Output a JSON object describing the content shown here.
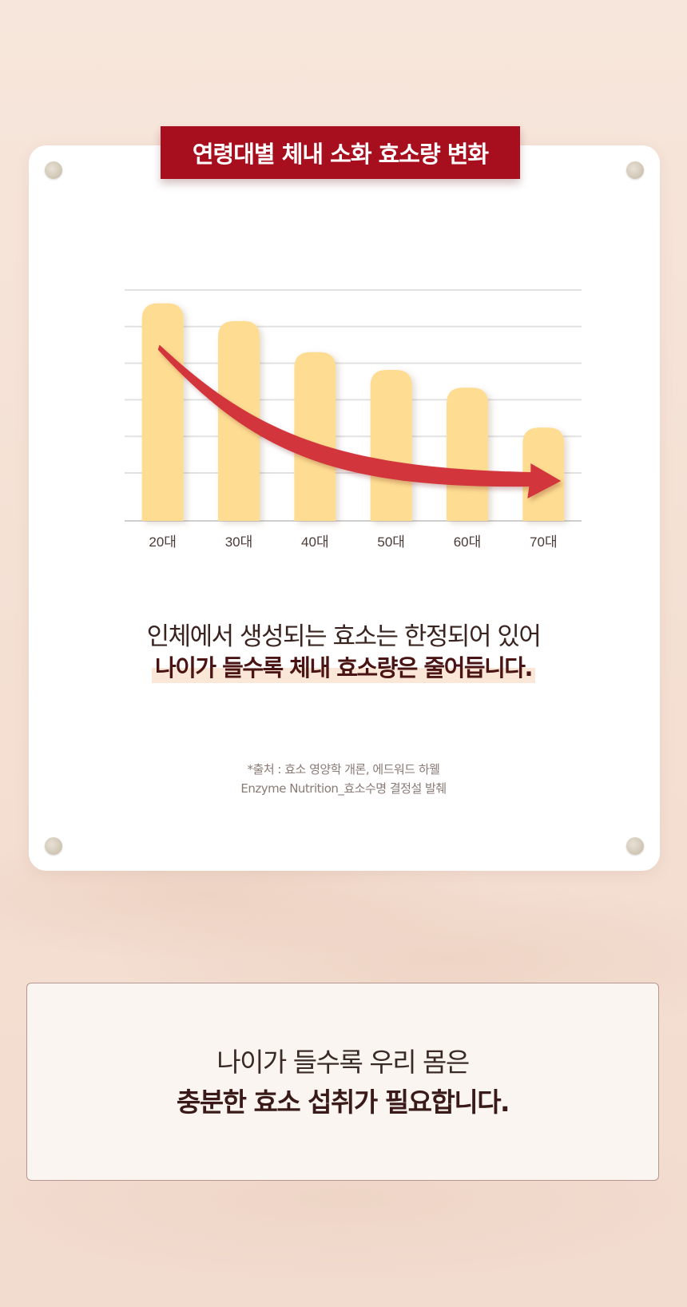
{
  "chart_data": {
    "type": "bar",
    "title": "연령대별 체내 소화 효소량 변화",
    "categories": [
      "20대",
      "30대",
      "40대",
      "50대",
      "60대",
      "70대"
    ],
    "values": [
      4.9,
      4.5,
      3.8,
      3.4,
      3.0,
      2.1
    ],
    "ylim": [
      0,
      5.2
    ],
    "grid": true,
    "bar_color": "#fedd92",
    "trend_arrow_color": "#d2343a"
  },
  "message": {
    "line1": "인체에서 생성되는 효소는 한정되어 있어",
    "line2": "나이가 들수록 체내 효소량은 줄어듭니다."
  },
  "source": {
    "line1": "*출처 : 효소 영양학 개론, 에드워드 하웰",
    "line2": "Enzyme Nutrition_효소수명 결정설 발췌"
  },
  "callout": {
    "line1": "나이가 들수록 우리 몸은",
    "line2": "충분한 효소 섭취가 필요합니다."
  }
}
